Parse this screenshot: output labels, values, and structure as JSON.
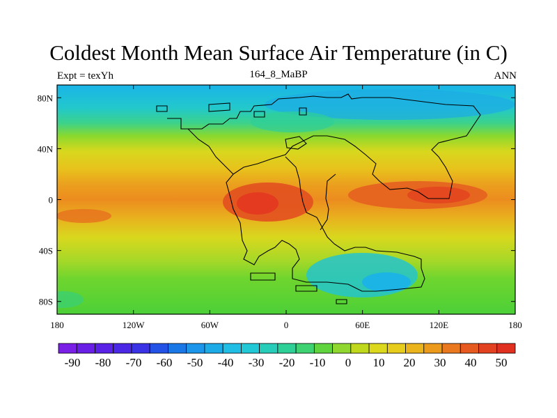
{
  "title": "Coldest Month Mean Surface Air Temperature (in C)",
  "subtitle_left": "Expt = texYh",
  "subtitle_center": "164_8_MaBP",
  "subtitle_right": "ANN",
  "map": {
    "lon_range": [
      -180,
      180
    ],
    "lat_range": [
      -90,
      90
    ],
    "lat_ticks": [
      {
        "value": 80,
        "label": "80N"
      },
      {
        "value": 40,
        "label": "40N"
      },
      {
        "value": 0,
        "label": "0"
      },
      {
        "value": -40,
        "label": "40S"
      },
      {
        "value": -80,
        "label": "80S"
      }
    ],
    "lon_ticks": [
      {
        "value": -180,
        "label": "180"
      },
      {
        "value": -120,
        "label": "120W"
      },
      {
        "value": -60,
        "label": "60W"
      },
      {
        "value": 0,
        "label": "0"
      },
      {
        "value": 60,
        "label": "60E"
      },
      {
        "value": 120,
        "label": "120E"
      },
      {
        "value": 180,
        "label": "180"
      }
    ],
    "band_colors": [
      {
        "lat": 90,
        "color": "#1ab4e8"
      },
      {
        "lat": 72,
        "color": "#22c8cc"
      },
      {
        "lat": 60,
        "color": "#3cd28a"
      },
      {
        "lat": 50,
        "color": "#8ad92e"
      },
      {
        "lat": 38,
        "color": "#d8d81e"
      },
      {
        "lat": 24,
        "color": "#e8c21c"
      },
      {
        "lat": 12,
        "color": "#eba01e"
      },
      {
        "lat": 0,
        "color": "#ec8c1f"
      },
      {
        "lat": -14,
        "color": "#e9b01e"
      },
      {
        "lat": -30,
        "color": "#d8d81e"
      },
      {
        "lat": -48,
        "color": "#a6d828"
      },
      {
        "lat": -62,
        "color": "#6fd52e"
      },
      {
        "lat": -90,
        "color": "#4cd038"
      }
    ]
  },
  "colorbar": {
    "colors": [
      "#7a1fe6",
      "#6a1fe6",
      "#5a22e6",
      "#4a28e6",
      "#3a33e6",
      "#2352e6",
      "#1a78e6",
      "#1b96ea",
      "#1cabe6",
      "#20bde4",
      "#23c8d6",
      "#27cdb8",
      "#2fd098",
      "#3fd272",
      "#5fd43c",
      "#90d830",
      "#c0d81c",
      "#dcd81e",
      "#e8cc1c",
      "#ecb41c",
      "#eb9a1c",
      "#e9781e",
      "#e65a20",
      "#e2421f",
      "#e23020"
    ],
    "labels": [
      "-90",
      "-80",
      "-70",
      "-60",
      "-50",
      "-40",
      "-30",
      "-20",
      "-10",
      "0",
      "10",
      "20",
      "30",
      "40",
      "50"
    ]
  }
}
